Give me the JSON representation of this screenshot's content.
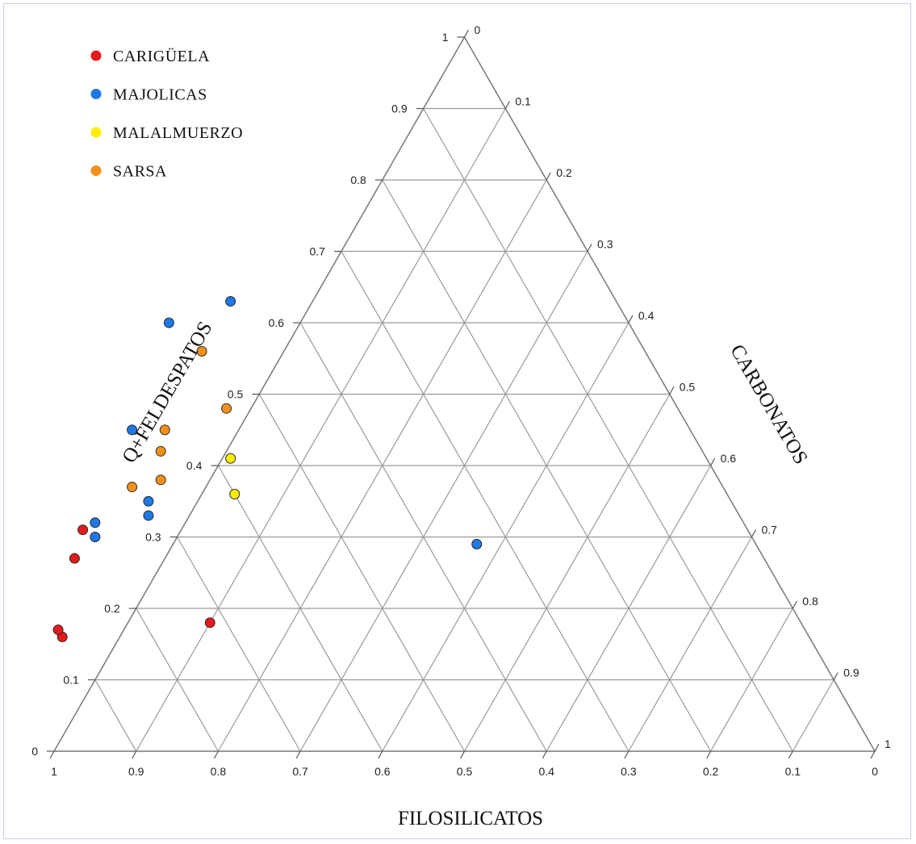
{
  "chart_data": {
    "type": "scatter",
    "subtype": "ternary",
    "title": "",
    "axes": {
      "bottom": {
        "label": "FILOSILICATOS",
        "ticks": [
          "1",
          "0.9",
          "0.8",
          "0.7",
          "0.6",
          "0.5",
          "0.4",
          "0.3",
          "0.2",
          "0.1",
          "0"
        ]
      },
      "left": {
        "label": "Q+FELDESPATOS",
        "ticks": [
          "0",
          "0.1",
          "0.2",
          "0.3",
          "0.4",
          "0.5",
          "0.6",
          "0.7",
          "0.8",
          "0.9",
          "1"
        ]
      },
      "right": {
        "label": "CARBONATOS",
        "ticks": [
          "0",
          "0.1",
          "0.2",
          "0.3",
          "0.4",
          "0.5",
          "0.6",
          "0.7",
          "0.8",
          "0.9",
          "1"
        ]
      }
    },
    "grid": true,
    "legend_position": "top-left",
    "series": [
      {
        "name": "CARIGÜELA",
        "color": "#e41a1c",
        "points": [
          {
            "filosilicatos": 0.81,
            "q_feldespatos": 0.31,
            "carbonatos": -0.12
          },
          {
            "filosilicatos": 0.84,
            "q_feldespatos": 0.27,
            "carbonatos": -0.11
          },
          {
            "filosilicatos": 0.91,
            "q_feldespatos": 0.16,
            "carbonatos": -0.07
          },
          {
            "filosilicatos": 0.91,
            "q_feldespatos": 0.17,
            "carbonatos": -0.08
          },
          {
            "filosilicatos": 0.72,
            "q_feldespatos": 0.18,
            "carbonatos": 0.1
          }
        ]
      },
      {
        "name": "MAJOLICAS",
        "color": "#1f78e6",
        "points": [
          {
            "filosilicatos": 0.47,
            "q_feldespatos": 0.63,
            "carbonatos": -0.1
          },
          {
            "filosilicatos": 0.56,
            "q_feldespatos": 0.6,
            "carbonatos": -0.16
          },
          {
            "filosilicatos": 0.68,
            "q_feldespatos": 0.45,
            "carbonatos": -0.13
          },
          {
            "filosilicatos": 0.71,
            "q_feldespatos": 0.35,
            "carbonatos": -0.06
          },
          {
            "filosilicatos": 0.72,
            "q_feldespatos": 0.33,
            "carbonatos": -0.05
          },
          {
            "filosilicatos": 0.79,
            "q_feldespatos": 0.32,
            "carbonatos": -0.11
          },
          {
            "filosilicatos": 0.8,
            "q_feldespatos": 0.3,
            "carbonatos": -0.1
          },
          {
            "filosilicatos": 0.34,
            "q_feldespatos": 0.29,
            "carbonatos": 0.37
          }
        ]
      },
      {
        "name": "MALALMUERZO",
        "color": "#ffee00",
        "points": [
          {
            "filosilicatos": 0.58,
            "q_feldespatos": 0.41,
            "carbonatos": 0.01
          },
          {
            "filosilicatos": 0.6,
            "q_feldespatos": 0.36,
            "carbonatos": 0.04
          }
        ]
      },
      {
        "name": "SARSA",
        "color": "#f39019",
        "points": [
          {
            "filosilicatos": 0.54,
            "q_feldespatos": 0.56,
            "carbonatos": -0.1
          },
          {
            "filosilicatos": 0.55,
            "q_feldespatos": 0.48,
            "carbonatos": -0.03
          },
          {
            "filosilicatos": 0.64,
            "q_feldespatos": 0.45,
            "carbonatos": -0.09
          },
          {
            "filosilicatos": 0.66,
            "q_feldespatos": 0.42,
            "carbonatos": -0.08
          },
          {
            "filosilicatos": 0.72,
            "q_feldespatos": 0.37,
            "carbonatos": -0.09
          },
          {
            "filosilicatos": 0.68,
            "q_feldespatos": 0.38,
            "carbonatos": -0.06
          }
        ]
      }
    ]
  }
}
